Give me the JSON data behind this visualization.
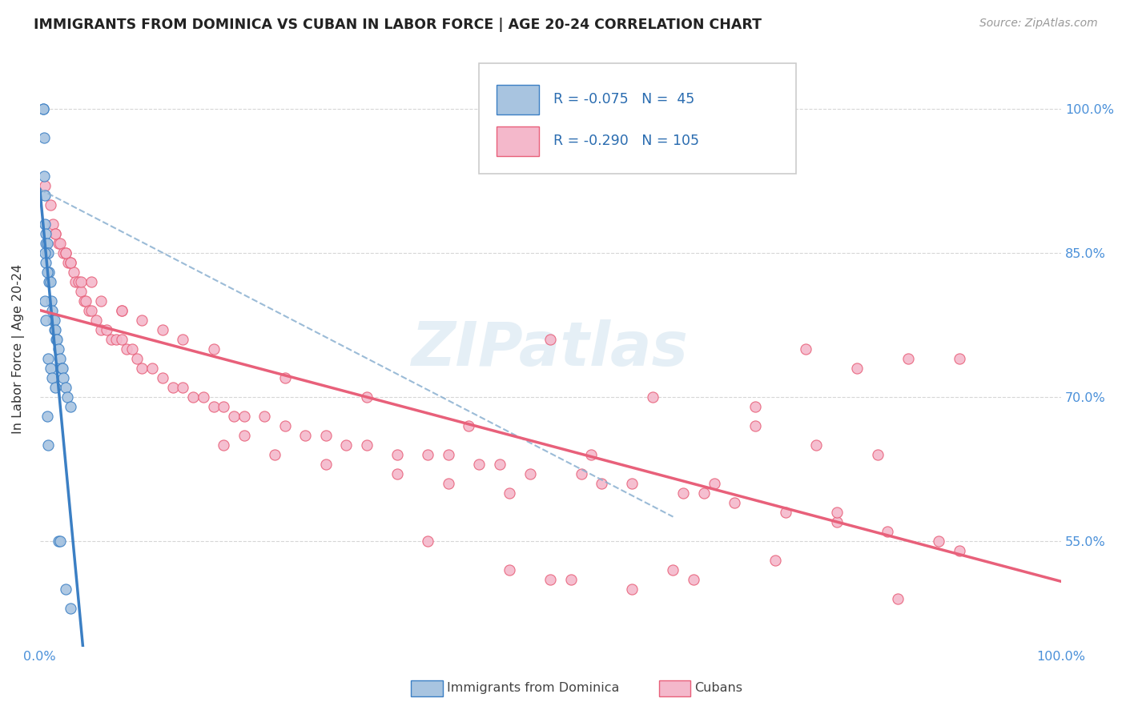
{
  "title": "IMMIGRANTS FROM DOMINICA VS CUBAN IN LABOR FORCE | AGE 20-24 CORRELATION CHART",
  "source": "Source: ZipAtlas.com",
  "ylabel": "In Labor Force | Age 20-24",
  "xlim": [
    0.0,
    1.0
  ],
  "ylim": [
    0.44,
    1.06
  ],
  "x_ticks": [
    0.0,
    0.1,
    0.2,
    0.3,
    0.4,
    0.5,
    0.6,
    0.7,
    0.8,
    0.9,
    1.0
  ],
  "x_tick_labels": [
    "0.0%",
    "",
    "",
    "",
    "",
    "",
    "",
    "",
    "",
    "",
    "100.0%"
  ],
  "y_ticks": [
    0.55,
    0.7,
    0.85,
    1.0
  ],
  "y_tick_labels": [
    "55.0%",
    "70.0%",
    "85.0%",
    "100.0%"
  ],
  "dominica_color": "#a8c4e0",
  "cuban_color": "#f4b8cb",
  "dominica_line_color": "#3b7fc4",
  "cuban_line_color": "#e8607a",
  "dominica_dashed_color": "#8ab0d0",
  "R_dominica": -0.075,
  "N_dominica": 45,
  "R_cuban": -0.29,
  "N_cuban": 105,
  "watermark": "ZIPatlas",
  "dom_x": [
    0.003,
    0.003,
    0.004,
    0.005,
    0.005,
    0.006,
    0.006,
    0.007,
    0.007,
    0.008,
    0.009,
    0.009,
    0.01,
    0.011,
    0.012,
    0.013,
    0.014,
    0.014,
    0.015,
    0.016,
    0.017,
    0.018,
    0.02,
    0.021,
    0.022,
    0.023,
    0.025,
    0.027,
    0.03,
    0.005,
    0.006,
    0.007,
    0.008,
    0.01,
    0.012,
    0.015,
    0.018,
    0.02,
    0.025,
    0.03,
    0.004,
    0.005,
    0.006,
    0.007,
    0.008
  ],
  "dom_y": [
    1.0,
    1.0,
    0.93,
    0.91,
    0.88,
    0.87,
    0.86,
    0.86,
    0.85,
    0.85,
    0.83,
    0.82,
    0.82,
    0.8,
    0.79,
    0.78,
    0.77,
    0.78,
    0.77,
    0.76,
    0.76,
    0.75,
    0.74,
    0.73,
    0.73,
    0.72,
    0.71,
    0.7,
    0.69,
    0.85,
    0.84,
    0.83,
    0.74,
    0.73,
    0.72,
    0.71,
    0.55,
    0.55,
    0.5,
    0.48,
    0.97,
    0.8,
    0.78,
    0.68,
    0.65
  ],
  "cub_x": [
    0.005,
    0.01,
    0.013,
    0.015,
    0.018,
    0.02,
    0.023,
    0.025,
    0.028,
    0.03,
    0.033,
    0.035,
    0.038,
    0.04,
    0.043,
    0.045,
    0.048,
    0.05,
    0.055,
    0.06,
    0.065,
    0.07,
    0.075,
    0.08,
    0.085,
    0.09,
    0.095,
    0.1,
    0.11,
    0.12,
    0.13,
    0.14,
    0.15,
    0.16,
    0.17,
    0.18,
    0.19,
    0.2,
    0.22,
    0.24,
    0.26,
    0.28,
    0.3,
    0.32,
    0.35,
    0.38,
    0.4,
    0.43,
    0.45,
    0.48,
    0.5,
    0.53,
    0.55,
    0.58,
    0.6,
    0.63,
    0.65,
    0.68,
    0.7,
    0.73,
    0.75,
    0.78,
    0.8,
    0.83,
    0.85,
    0.88,
    0.9,
    0.015,
    0.025,
    0.04,
    0.06,
    0.08,
    0.1,
    0.14,
    0.18,
    0.23,
    0.28,
    0.35,
    0.4,
    0.46,
    0.52,
    0.58,
    0.64,
    0.7,
    0.76,
    0.82,
    0.03,
    0.05,
    0.08,
    0.12,
    0.17,
    0.24,
    0.32,
    0.42,
    0.54,
    0.66,
    0.78,
    0.9,
    0.38,
    0.62,
    0.84,
    0.2,
    0.5,
    0.72,
    0.46
  ],
  "cub_y": [
    0.92,
    0.9,
    0.88,
    0.87,
    0.86,
    0.86,
    0.85,
    0.85,
    0.84,
    0.84,
    0.83,
    0.82,
    0.82,
    0.81,
    0.8,
    0.8,
    0.79,
    0.79,
    0.78,
    0.77,
    0.77,
    0.76,
    0.76,
    0.76,
    0.75,
    0.75,
    0.74,
    0.73,
    0.73,
    0.72,
    0.71,
    0.71,
    0.7,
    0.7,
    0.69,
    0.69,
    0.68,
    0.68,
    0.68,
    0.67,
    0.66,
    0.66,
    0.65,
    0.65,
    0.64,
    0.64,
    0.64,
    0.63,
    0.63,
    0.62,
    0.76,
    0.62,
    0.61,
    0.61,
    0.7,
    0.6,
    0.6,
    0.59,
    0.69,
    0.58,
    0.75,
    0.57,
    0.73,
    0.56,
    0.74,
    0.55,
    0.74,
    0.87,
    0.85,
    0.82,
    0.8,
    0.79,
    0.78,
    0.76,
    0.65,
    0.64,
    0.63,
    0.62,
    0.61,
    0.6,
    0.51,
    0.5,
    0.51,
    0.67,
    0.65,
    0.64,
    0.84,
    0.82,
    0.79,
    0.77,
    0.75,
    0.72,
    0.7,
    0.67,
    0.64,
    0.61,
    0.58,
    0.54,
    0.55,
    0.52,
    0.49,
    0.66,
    0.51,
    0.53,
    0.52
  ]
}
